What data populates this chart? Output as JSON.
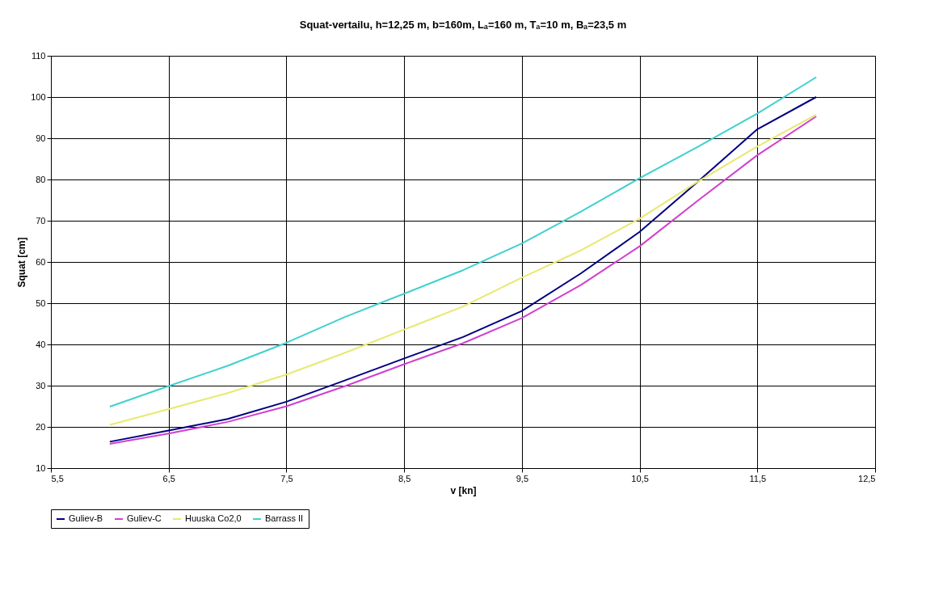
{
  "chart_data": {
    "type": "line",
    "title": "Squat-vertailu, h=12,25 m, b=160m, Lₐ=160 m, Tₐ=10 m, Bₐ=23,5 m",
    "xlabel": "v [kn]",
    "ylabel": "Squat [cm]",
    "x": [
      6,
      6.5,
      7,
      7.5,
      8,
      8.5,
      9,
      9.5,
      10,
      10.5,
      11,
      11.5,
      12
    ],
    "series": [
      {
        "name": "Guliev-B",
        "color": "#000080",
        "values": [
          16.4,
          19.1,
          21.9,
          26.1,
          31.3,
          36.6,
          41.8,
          48.1,
          57.2,
          67.3,
          79.6,
          92.2,
          100.0
        ]
      },
      {
        "name": "Guliev-C",
        "color": "#d040d0",
        "values": [
          15.9,
          18.4,
          21.2,
          25.0,
          29.9,
          35.2,
          40.3,
          46.4,
          54.4,
          63.8,
          75.0,
          85.9,
          95.3
        ]
      },
      {
        "name": "Huuska Co2,0",
        "color": "#e8e870",
        "values": [
          20.5,
          24.3,
          28.2,
          32.7,
          38.0,
          43.6,
          49.2,
          56.2,
          62.8,
          70.5,
          79.6,
          88.0,
          95.7
        ]
      },
      {
        "name": "Barrass II",
        "color": "#40d0d0",
        "values": [
          24.9,
          29.9,
          34.8,
          40.4,
          46.7,
          52.3,
          58.0,
          64.5,
          72.2,
          80.3,
          88.0,
          96.0,
          104.8
        ]
      }
    ],
    "xlim": [
      5.5,
      12.5
    ],
    "xticks": [
      {
        "value": 5.5,
        "label": "5,5"
      },
      {
        "value": 6.5,
        "label": "6,5"
      },
      {
        "value": 7.5,
        "label": "7,5"
      },
      {
        "value": 8.5,
        "label": "8,5"
      },
      {
        "value": 9.5,
        "label": "9,5"
      },
      {
        "value": 10.5,
        "label": "10,5"
      },
      {
        "value": 11.5,
        "label": "11,5"
      },
      {
        "value": 12.5,
        "label": "12,5"
      }
    ],
    "ylim": [
      10,
      110
    ],
    "yticks": [
      10,
      20,
      30,
      40,
      50,
      60,
      70,
      80,
      90,
      100,
      110
    ],
    "grid": true,
    "legend": "bottom",
    "marker": "none",
    "line_style": "solid"
  }
}
